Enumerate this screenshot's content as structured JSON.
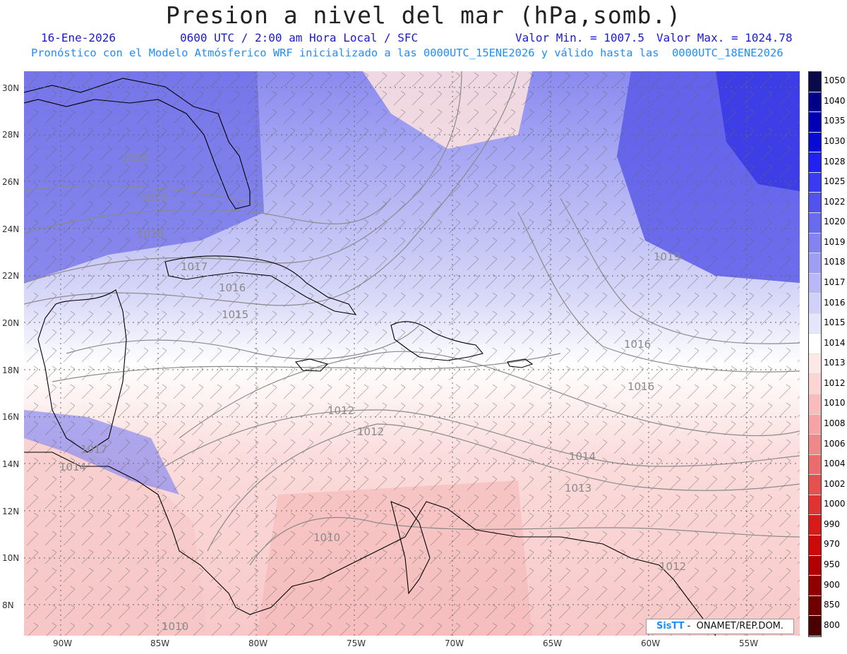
{
  "header": {
    "title": "Presion a nivel del mar (hPa,somb.)",
    "date": "16-Ene-2026",
    "time": "0600 UTC / 2:00 am Hora Local / SFC",
    "valmin": "Valor Min. = 1007.5",
    "valmax": "Valor Max. = 1024.78",
    "forecast": "Pronóstico con el Modelo Atmósferico WRF inicializado a las 0000UTC_15ENE2026 y válido hasta las  0000UTC_18ENE2026"
  },
  "colorbar": {
    "labels": [
      "1050",
      "1040",
      "1035",
      "1030",
      "1028",
      "1025",
      "1022",
      "1020",
      "1019",
      "1018",
      "1017",
      "1016",
      "1015",
      "1014",
      "1013",
      "1012",
      "1010",
      "1008",
      "1006",
      "1004",
      "1002",
      "1000",
      "990",
      "970",
      "950",
      "900",
      "850",
      "800"
    ],
    "colors": [
      "#0a0a4a",
      "#00008a",
      "#0000b5",
      "#0a0ad5",
      "#2222ee",
      "#3a3aee",
      "#5252ee",
      "#6a6aef",
      "#8484f0",
      "#9e9ef3",
      "#b8b8f6",
      "#d0d0f8",
      "#e6e6fb",
      "#ffffff",
      "#fde8e8",
      "#fbd4d4",
      "#f8bcbc",
      "#f4a4a4",
      "#ef8888",
      "#eb6c6c",
      "#e55050",
      "#df3434",
      "#d91a1a",
      "#cc0a0a",
      "#b00000",
      "#900000",
      "#700000",
      "#4a0000"
    ]
  },
  "axes": {
    "lat_labels": [
      "30N",
      "28N",
      "26N",
      "24N",
      "22N",
      "20N",
      "18N",
      "16N",
      "14N",
      "12N",
      "10N",
      "8N"
    ],
    "lon_labels": [
      "90W",
      "85W",
      "80W",
      "75W",
      "70W",
      "65W",
      "60W",
      "55W"
    ]
  },
  "isobars": [
    "1020",
    "1019",
    "1018",
    "1017",
    "1016",
    "1015",
    "1014",
    "1013",
    "1012",
    "1010",
    "1017",
    "1016",
    "1014",
    "1013",
    "1012",
    "1019",
    "1017",
    "1016",
    "1015",
    "1014",
    "1010",
    "1012"
  ],
  "credit": {
    "logo": "SisTT",
    "text": " -  ONAMET/REP.DOM."
  }
}
